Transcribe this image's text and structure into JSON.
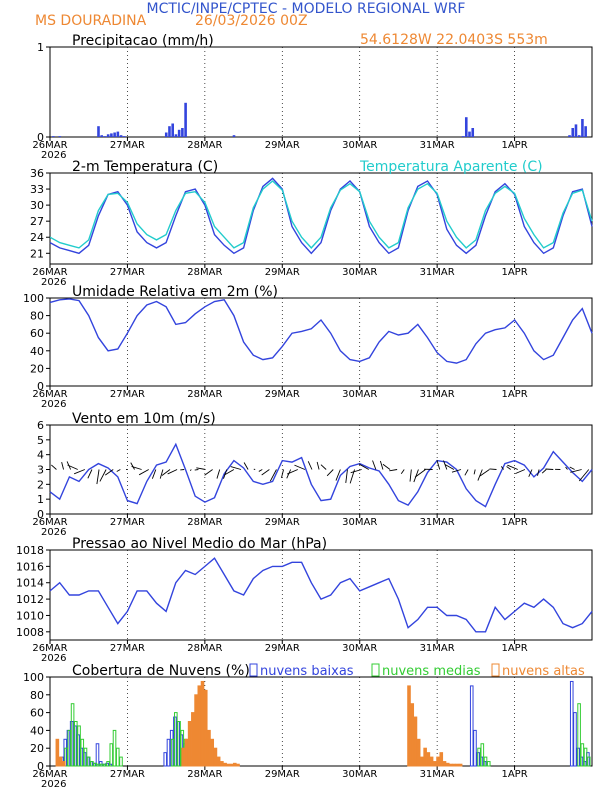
{
  "header": {
    "title": "MCTIC/INPE/CPTEC - MODELO REGIONAL WRF",
    "location": "MS DOURADINA",
    "run": "26/03/2026 00Z",
    "coords": "54.6128W 22.0403S 553m"
  },
  "colors": {
    "blue": "#3344dd",
    "cyan": "#22cccc",
    "green": "#33cc33",
    "orange": "#ee8833",
    "black": "#000000",
    "title": "#3355cc",
    "orangeText": "#ee8833"
  },
  "time_axis": {
    "labels": [
      "26MAR",
      "27MAR",
      "28MAR",
      "29MAR",
      "30MAR",
      "31MAR",
      "1APR"
    ],
    "year": "2026",
    "total_hours": 168
  },
  "chart_data": [
    {
      "type": "bar",
      "id": "precip",
      "title": "Precipitacao (mm/h)",
      "ylim": [
        0,
        1
      ],
      "yticks": [
        "0",
        "1"
      ],
      "x": [
        1,
        3,
        15,
        16,
        17,
        18,
        19,
        20,
        21,
        22,
        23,
        36,
        37,
        38,
        39,
        40,
        41,
        42,
        57,
        128,
        129,
        130,
        131,
        161,
        162,
        163,
        164,
        165,
        166
      ],
      "values": [
        0.01,
        0.01,
        0.12,
        0.02,
        0.01,
        0.03,
        0.04,
        0.05,
        0.06,
        0.02,
        0.01,
        0.05,
        0.12,
        0.15,
        0.03,
        0.08,
        0.1,
        0.38,
        0.02,
        0.01,
        0.22,
        0.06,
        0.1,
        0.02,
        0.1,
        0.14,
        0.02,
        0.2,
        0.12
      ]
    },
    {
      "type": "line",
      "id": "temp",
      "title": "2-m Temperatura (C)",
      "legend": "Temperatura Aparente (C)",
      "ylim": [
        19,
        36
      ],
      "yticks": [
        "21",
        "24",
        "27",
        "30",
        "33",
        "36"
      ],
      "series": [
        {
          "name": "Temperatura",
          "color": "blue",
          "x": [
            0,
            3,
            6,
            9,
            12,
            15,
            18,
            21,
            24,
            27,
            30,
            33,
            36,
            39,
            42,
            45,
            48,
            51,
            54,
            57,
            60,
            63,
            66,
            69,
            72,
            75,
            78,
            81,
            84,
            87,
            90,
            93,
            96,
            99,
            102,
            105,
            108,
            111,
            114,
            117,
            120,
            123,
            126,
            129,
            132,
            135,
            138,
            141,
            144,
            147,
            150,
            153,
            156,
            159,
            162,
            165,
            168
          ],
          "values": [
            23,
            22,
            21.5,
            21,
            22.5,
            28,
            32,
            32.5,
            30,
            25,
            23,
            22,
            23,
            28,
            32.5,
            33,
            30,
            24.5,
            22.5,
            21,
            22,
            29,
            33.5,
            35,
            33,
            26,
            23,
            21,
            23,
            29,
            33,
            34.5,
            32.5,
            26,
            23,
            21,
            22,
            29,
            33.5,
            34.5,
            32,
            25.5,
            22.5,
            21,
            22.5,
            28,
            32.5,
            34,
            32,
            26,
            23,
            21,
            22,
            28,
            32.5,
            33,
            26
          ]
        },
        {
          "name": "Temperatura Aparente",
          "color": "cyan",
          "x": [
            0,
            3,
            6,
            9,
            12,
            15,
            18,
            21,
            24,
            27,
            30,
            33,
            36,
            39,
            42,
            45,
            48,
            51,
            54,
            57,
            60,
            63,
            66,
            69,
            72,
            75,
            78,
            81,
            84,
            87,
            90,
            93,
            96,
            99,
            102,
            105,
            108,
            111,
            114,
            117,
            120,
            123,
            126,
            129,
            132,
            135,
            138,
            141,
            144,
            147,
            150,
            153,
            156,
            159,
            162,
            165,
            168
          ],
          "values": [
            24,
            23,
            22.5,
            22,
            23.5,
            29,
            32,
            32.2,
            30.5,
            26.5,
            24.5,
            23.5,
            24.5,
            29,
            32.2,
            32.5,
            30.5,
            26,
            24,
            22,
            23,
            29.5,
            33,
            34.5,
            32.8,
            27,
            24,
            22,
            24,
            29.5,
            32.8,
            34,
            32.5,
            27,
            24,
            22,
            23,
            29.5,
            33,
            34,
            32.2,
            27,
            24,
            22,
            23.5,
            29,
            32.2,
            33.5,
            32.2,
            27.5,
            24.5,
            22,
            23,
            28.5,
            32.2,
            32.8,
            27
          ]
        }
      ]
    },
    {
      "type": "line",
      "id": "rh",
      "title": "Umidade Relativa em 2m (%)",
      "ylim": [
        0,
        100
      ],
      "yticks": [
        "0",
        "20",
        "40",
        "60",
        "80",
        "100"
      ],
      "series": [
        {
          "name": "Umidade",
          "color": "blue",
          "x": [
            0,
            3,
            6,
            9,
            12,
            15,
            18,
            21,
            24,
            27,
            30,
            33,
            36,
            39,
            42,
            45,
            48,
            51,
            54,
            57,
            60,
            63,
            66,
            69,
            72,
            75,
            78,
            81,
            84,
            87,
            90,
            93,
            96,
            99,
            102,
            105,
            108,
            111,
            114,
            117,
            120,
            123,
            126,
            129,
            132,
            135,
            138,
            141,
            144,
            147,
            150,
            153,
            156,
            159,
            162,
            165,
            168
          ],
          "values": [
            95,
            98,
            99,
            97,
            80,
            55,
            40,
            42,
            60,
            80,
            92,
            96,
            90,
            70,
            72,
            82,
            90,
            96,
            98,
            80,
            50,
            35,
            30,
            32,
            45,
            60,
            62,
            65,
            75,
            60,
            40,
            30,
            28,
            32,
            50,
            62,
            58,
            60,
            70,
            55,
            38,
            28,
            26,
            30,
            48,
            60,
            64,
            66,
            75,
            60,
            40,
            30,
            35,
            55,
            75,
            88,
            60
          ]
        }
      ]
    },
    {
      "type": "line",
      "id": "wind",
      "title": "Vento em 10m (m/s)",
      "ylim": [
        0,
        6
      ],
      "yticks": [
        "0",
        "1",
        "2",
        "3",
        "4",
        "5",
        "6"
      ],
      "series": [
        {
          "name": "Vento",
          "color": "blue",
          "x": [
            0,
            3,
            6,
            9,
            12,
            15,
            18,
            21,
            24,
            27,
            30,
            33,
            36,
            39,
            42,
            45,
            48,
            51,
            54,
            57,
            60,
            63,
            66,
            69,
            72,
            75,
            78,
            81,
            84,
            87,
            90,
            93,
            96,
            99,
            102,
            105,
            108,
            111,
            114,
            117,
            120,
            123,
            126,
            129,
            132,
            135,
            138,
            141,
            144,
            147,
            150,
            153,
            156,
            159,
            162,
            165,
            168
          ],
          "values": [
            1.5,
            1,
            2.5,
            2.2,
            3,
            3.4,
            3.1,
            2.5,
            0.9,
            0.7,
            2.2,
            3.3,
            3.5,
            4.7,
            3,
            1.2,
            0.8,
            1.1,
            2.7,
            3.6,
            3.1,
            2.2,
            2,
            2.2,
            3.6,
            3.5,
            3.8,
            2,
            0.9,
            1,
            2.6,
            3.2,
            3.4,
            3.1,
            2.9,
            2,
            0.9,
            0.6,
            1.5,
            2.8,
            3.6,
            3.5,
            3,
            1.7,
            0.9,
            0.5,
            2,
            3.4,
            3.6,
            3.3,
            2.5,
            3.1,
            4.2,
            3.5,
            2.8,
            2.2,
            3
          ]
        }
      ]
    },
    {
      "type": "line",
      "id": "pres",
      "title": "Pressao ao Nivel Medio do Mar (hPa)",
      "ylim": [
        1007,
        1018
      ],
      "yticks": [
        "1008",
        "1010",
        "1012",
        "1014",
        "1016",
        "1018"
      ],
      "series": [
        {
          "name": "Pressao",
          "color": "blue",
          "x": [
            0,
            3,
            6,
            9,
            12,
            15,
            18,
            21,
            24,
            27,
            30,
            33,
            36,
            39,
            42,
            45,
            48,
            51,
            54,
            57,
            60,
            63,
            66,
            69,
            72,
            75,
            78,
            81,
            84,
            87,
            90,
            93,
            96,
            99,
            102,
            105,
            108,
            111,
            114,
            117,
            120,
            123,
            126,
            129,
            132,
            135,
            138,
            141,
            144,
            147,
            150,
            153,
            156,
            159,
            162,
            165,
            168
          ],
          "values": [
            1013,
            1014,
            1012.5,
            1012.5,
            1013,
            1013,
            1011,
            1009,
            1010.5,
            1013,
            1013,
            1011.5,
            1010.5,
            1014,
            1015.5,
            1015,
            1016,
            1017,
            1015,
            1013,
            1012.5,
            1014.5,
            1015.5,
            1016,
            1016,
            1016.5,
            1016.5,
            1014,
            1012,
            1012.5,
            1014,
            1014.5,
            1013,
            1013.5,
            1014,
            1014.5,
            1012,
            1008.5,
            1009.5,
            1011,
            1011,
            1010,
            1010,
            1009.5,
            1008,
            1008,
            1011,
            1009.5,
            1010.5,
            1011.5,
            1011,
            1012,
            1011,
            1009,
            1008.5,
            1009,
            1010.5
          ]
        }
      ]
    },
    {
      "type": "bar",
      "id": "clouds",
      "title": "Cobertura de Nuvens (%)",
      "legend": [
        "nuvens baixas",
        "nuvens medias",
        "nuvens altas"
      ],
      "ylim": [
        0,
        100
      ],
      "yticks": [
        "0",
        "20",
        "40",
        "60",
        "80",
        "100"
      ],
      "series": [
        {
          "name": "baixas",
          "color": "blue",
          "x": [
            4,
            5,
            6,
            7,
            8,
            9,
            10,
            11,
            12,
            13,
            14,
            15,
            16,
            17,
            18,
            19,
            36,
            37,
            38,
            39,
            40,
            41,
            42,
            43,
            44,
            131,
            132,
            133,
            134,
            135,
            162,
            163,
            164,
            165,
            166,
            167
          ],
          "values": [
            10,
            30,
            40,
            50,
            45,
            35,
            20,
            15,
            10,
            5,
            3,
            25,
            5,
            2,
            3,
            2,
            15,
            30,
            40,
            55,
            50,
            35,
            25,
            10,
            5,
            90,
            40,
            15,
            10,
            5,
            95,
            60,
            20,
            10,
            5,
            15
          ]
        },
        {
          "name": "medias",
          "color": "green",
          "x": [
            5,
            6,
            7,
            8,
            9,
            10,
            11,
            12,
            13,
            14,
            15,
            16,
            17,
            18,
            19,
            20,
            21,
            22,
            38,
            39,
            40,
            41,
            42,
            43,
            44,
            45,
            50,
            133,
            134,
            135,
            136,
            164,
            165,
            166,
            167
          ],
          "values": [
            20,
            40,
            70,
            50,
            45,
            30,
            20,
            10,
            5,
            3,
            2,
            2,
            2,
            5,
            25,
            40,
            20,
            10,
            30,
            60,
            50,
            40,
            30,
            20,
            10,
            5,
            5,
            20,
            25,
            10,
            5,
            70,
            25,
            20,
            10
          ]
        },
        {
          "name": "altas",
          "color": "orange",
          "x": [
            2,
            3,
            4,
            41,
            42,
            43,
            44,
            45,
            46,
            47,
            48,
            49,
            50,
            51,
            52,
            53,
            54,
            55,
            56,
            57,
            58,
            111,
            112,
            113,
            114,
            115,
            116,
            117,
            118,
            119,
            120,
            121,
            122,
            123,
            124,
            125,
            126,
            127
          ],
          "values": [
            30,
            10,
            5,
            20,
            30,
            50,
            60,
            80,
            90,
            95,
            85,
            40,
            30,
            20,
            10,
            5,
            3,
            2,
            2,
            3,
            2,
            90,
            70,
            55,
            30,
            10,
            20,
            15,
            10,
            5,
            10,
            15,
            5,
            3,
            2,
            2,
            2,
            2
          ]
        }
      ]
    }
  ]
}
